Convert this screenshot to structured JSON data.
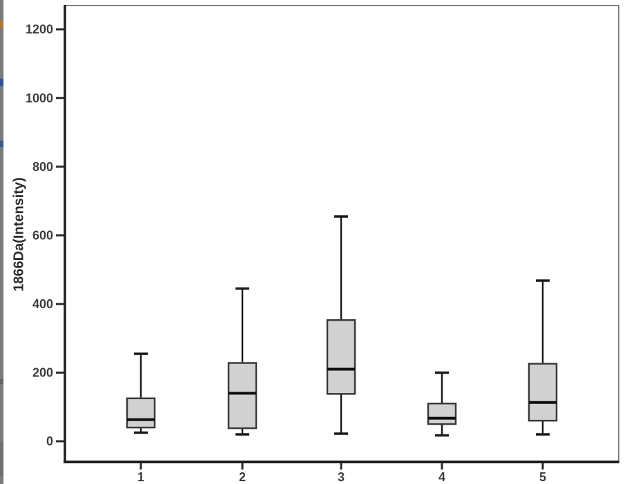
{
  "window": {
    "background": "#ffffff"
  },
  "decoration": {
    "strip_color": "#7b7b7b",
    "marks": [
      {
        "name": "orange-mark",
        "color": "#b5772f",
        "y": 30,
        "h": 10
      },
      {
        "name": "blue-mark-upper",
        "color": "#33539c",
        "y": 114,
        "h": 11
      },
      {
        "name": "blue-mark-lower",
        "color": "#2f5d8f",
        "y": 204,
        "h": 9
      },
      {
        "name": "gray-mark",
        "color": "#646464",
        "y": 550,
        "h": 7
      },
      {
        "name": "dark-bottom-segment",
        "color": "#6f6f6f",
        "y": 642,
        "h": 48
      }
    ]
  },
  "chart_data": {
    "type": "boxplot",
    "title": "",
    "xlabel": "",
    "ylabel": "1866Da(Intensity)",
    "categories": [
      "1",
      "2",
      "3",
      "4",
      "5"
    ],
    "yticks": [
      0,
      200,
      400,
      600,
      800,
      1000,
      1200
    ],
    "ylim": [
      -60,
      1270
    ],
    "grid": false,
    "legend": "none",
    "boxes": [
      {
        "category": "1",
        "min": 25,
        "q1": 40,
        "median": 63,
        "q3": 125,
        "max": 255
      },
      {
        "category": "2",
        "min": 20,
        "q1": 38,
        "median": 140,
        "q3": 228,
        "max": 445
      },
      {
        "category": "3",
        "min": 22,
        "q1": 138,
        "median": 210,
        "q3": 353,
        "max": 655
      },
      {
        "category": "4",
        "min": 17,
        "q1": 50,
        "median": 67,
        "q3": 110,
        "max": 200
      },
      {
        "category": "5",
        "min": 20,
        "q1": 60,
        "median": 113,
        "q3": 226,
        "max": 468
      }
    ],
    "colors": {
      "box_fill": "#d1d1d1",
      "box_border": "#3a3a3a",
      "median": "#0d0d0d",
      "whisker": "#1a1a1a",
      "axis_dark": "#1e1e1e",
      "frame_light": "#7e7e7e",
      "tick": "#2a2a2a",
      "tick_text": "#3c3c3c",
      "plot_background": "#ffffff"
    }
  }
}
